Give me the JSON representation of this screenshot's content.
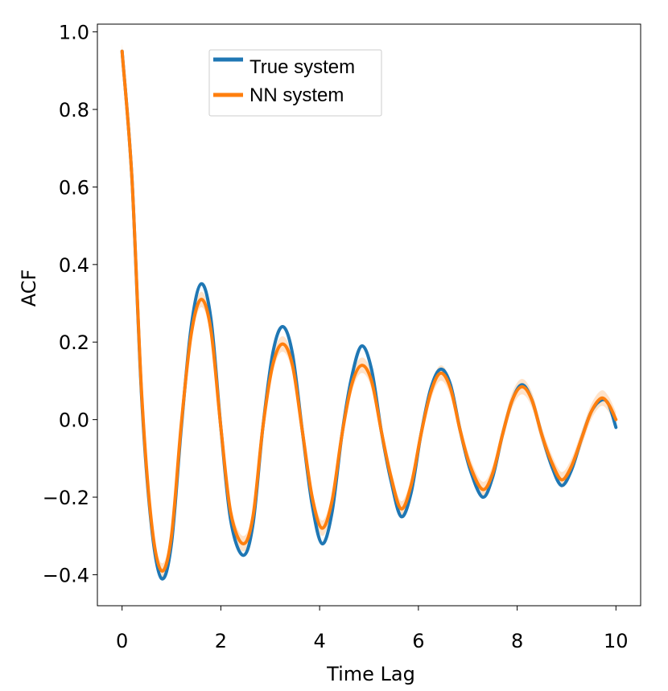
{
  "chart_data": {
    "type": "line",
    "title": "",
    "xlabel": "Time Lag",
    "ylabel": "ACF",
    "xlim": [
      -0.5,
      10.5
    ],
    "ylim": [
      -0.48,
      1.02
    ],
    "grid": false,
    "legend_position": "top-center",
    "x_ticks": [
      0,
      2,
      4,
      6,
      8,
      10
    ],
    "x_tick_labels": [
      "0",
      "2",
      "4",
      "6",
      "8",
      "10"
    ],
    "y_ticks": [
      -0.4,
      -0.2,
      0.0,
      0.2,
      0.4,
      0.6,
      0.8,
      1.0
    ],
    "y_tick_labels": [
      "−0.4",
      "−0.2",
      "0.0",
      "0.2",
      "0.4",
      "0.6",
      "0.8",
      "1.0"
    ],
    "series": [
      {
        "name": "True system",
        "color": "#1f77b4",
        "x": [
          0,
          0.2,
          0.4,
          0.6,
          0.8,
          1.0,
          1.2,
          1.4,
          1.6,
          1.8,
          2.0,
          2.2,
          2.45,
          2.65,
          2.85,
          3.05,
          3.25,
          3.45,
          3.65,
          3.85,
          4.05,
          4.25,
          4.45,
          4.65,
          4.85,
          5.05,
          5.25,
          5.45,
          5.65,
          5.85,
          6.05,
          6.25,
          6.45,
          6.65,
          6.85,
          7.05,
          7.3,
          7.5,
          7.7,
          7.9,
          8.1,
          8.3,
          8.5,
          8.7,
          8.9,
          9.1,
          9.3,
          9.5,
          9.7,
          9.85,
          10.0
        ],
        "values": [
          0.95,
          0.62,
          0.05,
          -0.28,
          -0.41,
          -0.32,
          -0.02,
          0.24,
          0.35,
          0.26,
          -0.02,
          -0.26,
          -0.35,
          -0.27,
          -0.02,
          0.17,
          0.24,
          0.17,
          -0.03,
          -0.22,
          -0.32,
          -0.24,
          -0.04,
          0.11,
          0.19,
          0.13,
          -0.03,
          -0.16,
          -0.25,
          -0.19,
          -0.04,
          0.08,
          0.13,
          0.09,
          -0.03,
          -0.13,
          -0.2,
          -0.15,
          -0.04,
          0.05,
          0.09,
          0.05,
          -0.04,
          -0.12,
          -0.17,
          -0.13,
          -0.05,
          0.02,
          0.05,
          0.04,
          -0.02
        ]
      },
      {
        "name": "NN system",
        "color": "#ff7f0e",
        "x": [
          0,
          0.2,
          0.4,
          0.6,
          0.8,
          1.0,
          1.2,
          1.4,
          1.6,
          1.8,
          2.0,
          2.2,
          2.45,
          2.65,
          2.85,
          3.05,
          3.25,
          3.45,
          3.65,
          3.85,
          4.05,
          4.25,
          4.45,
          4.65,
          4.85,
          5.05,
          5.25,
          5.45,
          5.65,
          5.85,
          6.05,
          6.25,
          6.45,
          6.65,
          6.85,
          7.05,
          7.3,
          7.5,
          7.7,
          7.9,
          8.1,
          8.3,
          8.5,
          8.7,
          8.9,
          9.1,
          9.3,
          9.5,
          9.7,
          9.85,
          10.0
        ],
        "values": [
          0.95,
          0.62,
          0.06,
          -0.27,
          -0.39,
          -0.3,
          -0.01,
          0.22,
          0.31,
          0.23,
          -0.02,
          -0.24,
          -0.32,
          -0.25,
          -0.02,
          0.14,
          0.195,
          0.14,
          -0.03,
          -0.2,
          -0.28,
          -0.21,
          -0.04,
          0.09,
          0.14,
          0.1,
          -0.03,
          -0.15,
          -0.23,
          -0.17,
          -0.04,
          0.07,
          0.12,
          0.08,
          -0.03,
          -0.12,
          -0.18,
          -0.14,
          -0.04,
          0.05,
          0.085,
          0.05,
          -0.04,
          -0.11,
          -0.155,
          -0.12,
          -0.05,
          0.02,
          0.055,
          0.04,
          0.0
        ]
      }
    ]
  }
}
